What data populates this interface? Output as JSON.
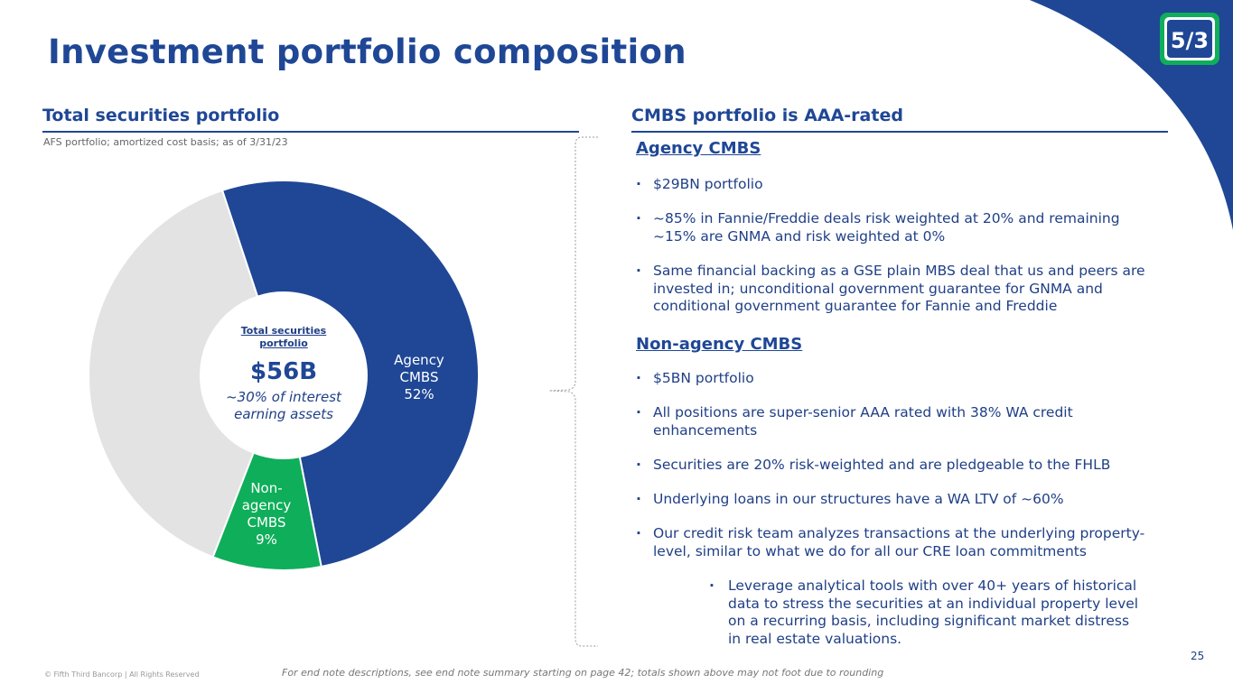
{
  "slide": {
    "title": "Investment portfolio composition",
    "page_number": "25",
    "footer_copyright": "© Fifth Third Bancorp | All Rights Reserved",
    "footer_note": "For end note descriptions, see end note summary starting on page 42; totals shown above may not foot due to rounding"
  },
  "colors": {
    "brand_blue": "#1f4796",
    "agency": "#1f4796",
    "non_agency": "#0fae5a",
    "other": "#e3e3e3",
    "logo_green": "#0fae5a"
  },
  "left": {
    "heading": "Total securities portfolio",
    "caption": "AFS portfolio; amortized cost basis; as of 3/31/23",
    "center": {
      "title_line1": "Total securities",
      "title_line2": "portfolio",
      "value": "$56B",
      "note_line1": "~30% of interest",
      "note_line2": "earning assets"
    },
    "slice_labels": {
      "agency": [
        "Agency",
        "CMBS",
        "52%"
      ],
      "non_agency": [
        "Non-",
        "agency",
        "CMBS",
        "9%"
      ]
    }
  },
  "chart_data": {
    "type": "pie",
    "variant": "donut",
    "title": "Total securities portfolio",
    "total_label": "$56B",
    "slices": [
      {
        "name": "Agency CMBS",
        "value": 52,
        "color": "#1f4796",
        "labeled": true
      },
      {
        "name": "Non-agency CMBS",
        "value": 9,
        "color": "#0fae5a",
        "labeled": true
      },
      {
        "name": "",
        "value": 39,
        "color": "#e3e3e3",
        "labeled": false
      }
    ]
  },
  "right": {
    "heading": "CMBS portfolio is AAA-rated",
    "agency": {
      "subheading": "Agency CMBS",
      "bullets": [
        [
          "$29BN portfolio"
        ],
        [
          "~85% in Fannie/Freddie deals risk weighted at 20% and remaining",
          "~15% are GNMA and risk weighted at 0%"
        ],
        [
          "Same financial backing as a GSE plain MBS deal that us and peers are",
          "invested in; unconditional government guarantee for GNMA and",
          "conditional government guarantee for Fannie and Freddie"
        ]
      ]
    },
    "non_agency": {
      "subheading": "Non-agency CMBS",
      "bullets": [
        [
          "$5BN portfolio"
        ],
        [
          "All positions are super-senior AAA rated with 38% WA credit",
          "enhancements"
        ],
        [
          "Securities are 20% risk-weighted and are pledgeable to the FHLB"
        ],
        [
          "Underlying loans in our structures have a WA LTV of ~60%"
        ],
        [
          "Our credit risk team analyzes transactions at the underlying property-",
          "level, similar to what we do for all our CRE loan commitments"
        ]
      ],
      "sub_bullet": [
        "Leverage analytical tools with over 40+ years of historical",
        "data to stress the securities at an individual property level",
        "on a recurring basis, including significant market distress",
        "in real estate valuations."
      ]
    }
  }
}
